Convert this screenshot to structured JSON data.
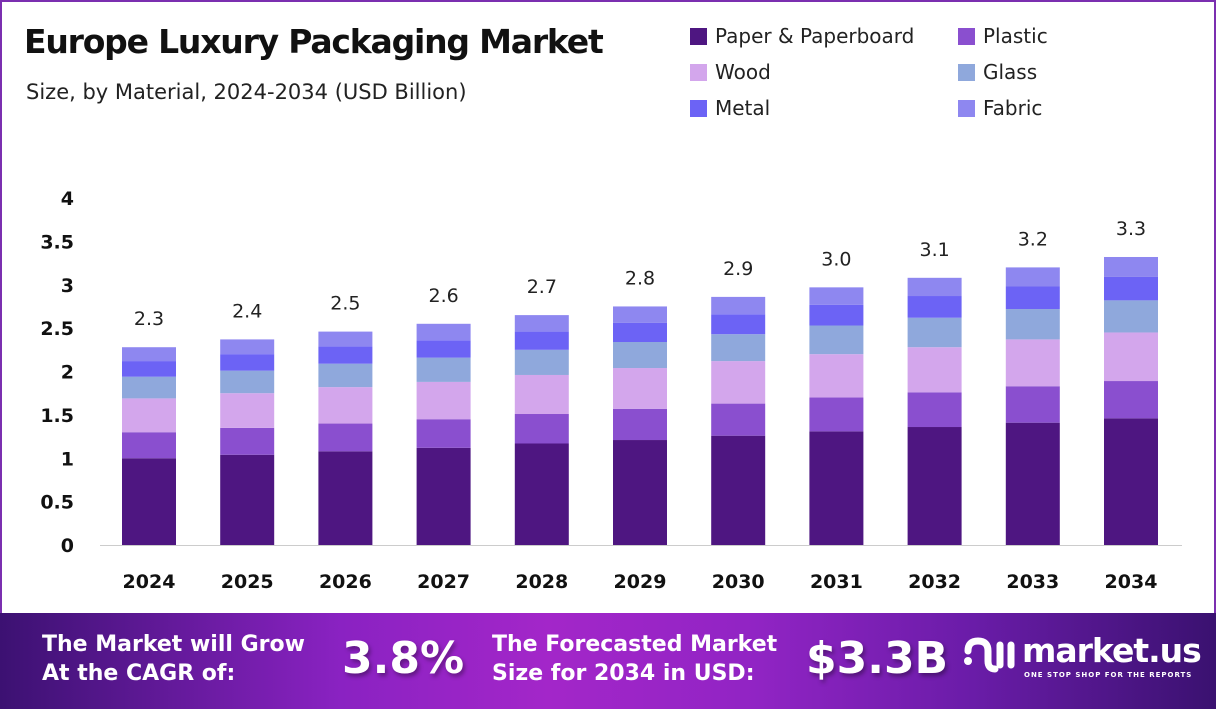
{
  "header": {
    "title": "Europe Luxury Packaging Market",
    "subtitle": "Size, by Material, 2024-2034 (USD Billion)"
  },
  "chart_data": {
    "type": "bar",
    "stacked": true,
    "categories": [
      "2024",
      "2025",
      "2026",
      "2027",
      "2028",
      "2029",
      "2030",
      "2031",
      "2032",
      "2033",
      "2034"
    ],
    "series": [
      {
        "name": "Paper & Paperboard",
        "color": "#4e1681",
        "values": [
          1.0,
          1.04,
          1.08,
          1.12,
          1.17,
          1.21,
          1.26,
          1.31,
          1.36,
          1.41,
          1.46
        ]
      },
      {
        "name": "Plastic",
        "color": "#8a4fcf",
        "values": [
          0.3,
          0.31,
          0.32,
          0.33,
          0.34,
          0.36,
          0.37,
          0.39,
          0.4,
          0.42,
          0.43
        ]
      },
      {
        "name": "Wood",
        "color": "#d3a6ec",
        "values": [
          0.39,
          0.4,
          0.42,
          0.43,
          0.45,
          0.47,
          0.49,
          0.5,
          0.52,
          0.54,
          0.56
        ]
      },
      {
        "name": "Glass",
        "color": "#8fa8dc",
        "values": [
          0.25,
          0.26,
          0.27,
          0.28,
          0.29,
          0.3,
          0.31,
          0.33,
          0.34,
          0.35,
          0.37
        ]
      },
      {
        "name": "Metal",
        "color": "#6c63f5",
        "values": [
          0.18,
          0.19,
          0.2,
          0.2,
          0.21,
          0.22,
          0.23,
          0.24,
          0.25,
          0.26,
          0.27
        ]
      },
      {
        "name": "Fabric",
        "color": "#8e87f0",
        "values": [
          0.16,
          0.17,
          0.17,
          0.19,
          0.19,
          0.19,
          0.2,
          0.2,
          0.21,
          0.22,
          0.23
        ]
      }
    ],
    "totals_labels": [
      "2.3",
      "2.4",
      "2.5",
      "2.6",
      "2.7",
      "2.8",
      "2.9",
      "3.0",
      "3.1",
      "3.2",
      "3.3"
    ],
    "yticks": [
      "0",
      "0.5",
      "1",
      "1.5",
      "2",
      "2.5",
      "3",
      "3.5",
      "4"
    ],
    "ylim": [
      0,
      4
    ],
    "grid": false,
    "legend": "top-right"
  },
  "footer": {
    "cagr_text_1": "The Market will Grow",
    "cagr_text_2": "At the CAGR of:",
    "cagr_value": "3.8%",
    "forecast_text_1": "The Forecasted Market",
    "forecast_text_2": "Size for 2034 in USD:",
    "forecast_value": "$3.3B",
    "logo_name": "market.us",
    "logo_tagline": "ONE STOP SHOP FOR THE REPORTS"
  }
}
